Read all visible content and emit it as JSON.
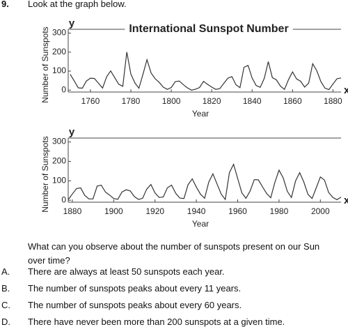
{
  "question_number": "9.",
  "prompt": "Look at the graph below.",
  "chart_data": [
    {
      "type": "line",
      "title": "International Sunspot Number",
      "y_letter": "y",
      "x_letter": "x",
      "x_label": "Year",
      "y_label": "Number of Sunspots",
      "xlim": [
        1749,
        1884
      ],
      "xticks": [
        1760,
        1780,
        1800,
        1820,
        1840,
        1860,
        1880
      ],
      "ylim": [
        -10,
        320
      ],
      "yticks": [
        0,
        100,
        200,
        300
      ],
      "x": [
        1750,
        1752,
        1754,
        1756,
        1758,
        1760,
        1762,
        1764,
        1766,
        1768,
        1770,
        1772,
        1774,
        1776,
        1778,
        1780,
        1782,
        1784,
        1786,
        1788,
        1790,
        1792,
        1794,
        1796,
        1798,
        1800,
        1802,
        1804,
        1806,
        1808,
        1810,
        1812,
        1814,
        1816,
        1818,
        1820,
        1822,
        1824,
        1826,
        1828,
        1830,
        1832,
        1834,
        1836,
        1838,
        1840,
        1842,
        1844,
        1846,
        1848,
        1850,
        1852,
        1854,
        1856,
        1858,
        1860,
        1862,
        1864,
        1866,
        1868,
        1870,
        1872,
        1874,
        1876,
        1878,
        1880,
        1882,
        1884
      ],
      "series": [
        {
          "color": "#333333",
          "values": [
            83,
            48,
            12,
            10,
            48,
            63,
            61,
            36,
            11,
            70,
            101,
            66,
            31,
            20,
            200,
            85,
            38,
            10,
            83,
            160,
            90,
            60,
            41,
            16,
            4,
            14,
            45,
            48,
            28,
            12,
            0,
            5,
            14,
            46,
            30,
            16,
            4,
            8,
            36,
            63,
            71,
            28,
            13,
            120,
            130,
            64,
            24,
            15,
            62,
            150,
            66,
            54,
            21,
            4,
            55,
            96,
            59,
            47,
            16,
            37,
            139,
            102,
            45,
            11,
            3,
            32,
            60,
            64
          ]
        }
      ]
    },
    {
      "type": "line",
      "y_letter": "y",
      "x_letter": "x",
      "x_label": "Year",
      "y_label": "Number of Sunspots",
      "xlim": [
        1878,
        2010
      ],
      "xticks": [
        1880,
        1900,
        1920,
        1940,
        1960,
        1980,
        2000
      ],
      "ylim": [
        -10,
        320
      ],
      "yticks": [
        0,
        100,
        200,
        300
      ],
      "x": [
        1878,
        1880,
        1882,
        1884,
        1886,
        1888,
        1890,
        1892,
        1894,
        1896,
        1898,
        1900,
        1902,
        1904,
        1906,
        1908,
        1910,
        1912,
        1914,
        1916,
        1918,
        1920,
        1922,
        1924,
        1926,
        1928,
        1930,
        1932,
        1934,
        1936,
        1938,
        1940,
        1942,
        1944,
        1946,
        1948,
        1950,
        1952,
        1954,
        1956,
        1958,
        1960,
        1962,
        1964,
        1966,
        1968,
        1970,
        1972,
        1974,
        1976,
        1978,
        1980,
        1982,
        1984,
        1986,
        1988,
        1990,
        1992,
        1994,
        1996,
        1998,
        2000,
        2002,
        2004,
        2006,
        2008,
        2010
      ],
      "series": [
        {
          "color": "#333333",
          "values": [
            3,
            32,
            60,
            64,
            25,
            7,
            7,
            73,
            78,
            42,
            27,
            9,
            5,
            42,
            54,
            48,
            19,
            4,
            10,
            57,
            81,
            38,
            14,
            17,
            64,
            78,
            36,
            11,
            9,
            80,
            110,
            68,
            31,
            10,
            93,
            136,
            84,
            32,
            4,
            142,
            185,
            112,
            38,
            10,
            47,
            106,
            105,
            69,
            35,
            13,
            93,
            155,
            116,
            46,
            14,
            100,
            142,
            94,
            30,
            9,
            64,
            120,
            104,
            40,
            15,
            3,
            16
          ]
        }
      ]
    }
  ],
  "question": "What can you observe about the number of sunspots present on our Sun over time?",
  "options": [
    {
      "letter": "A.",
      "text": "There are always at least 50 sunspots each year."
    },
    {
      "letter": "B.",
      "text": "The number of sunspots peaks about every 11 years."
    },
    {
      "letter": "C.",
      "text": "The number of sunspots peaks about every 60 years."
    },
    {
      "letter": "D.",
      "text": "There have never been more than 200 sunspots at a given time."
    }
  ]
}
